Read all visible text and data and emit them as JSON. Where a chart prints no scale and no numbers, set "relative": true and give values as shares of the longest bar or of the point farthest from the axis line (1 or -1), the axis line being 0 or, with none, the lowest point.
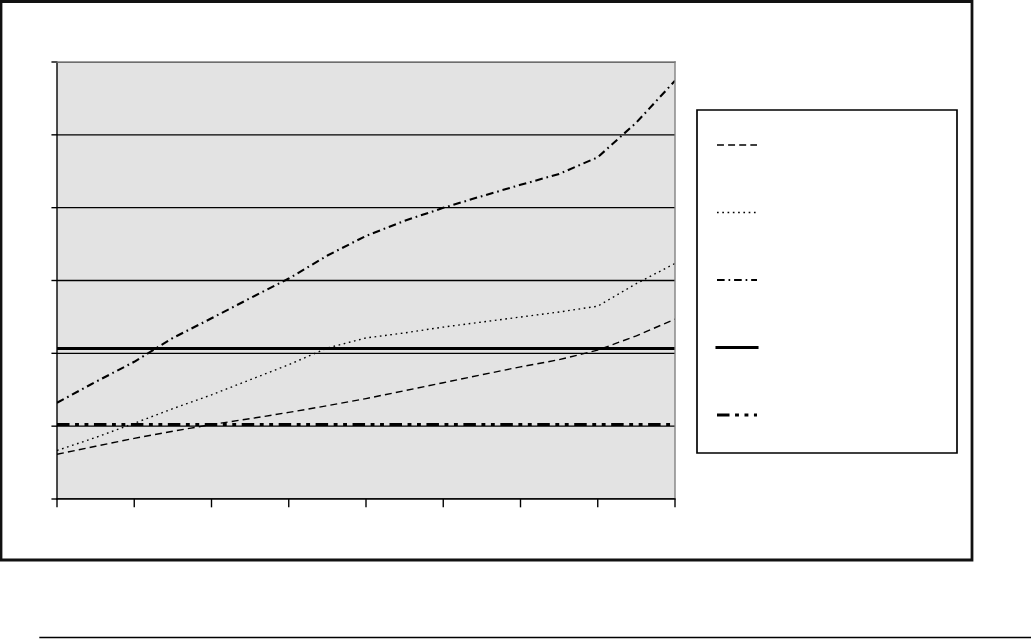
{
  "chart_data": {
    "type": "line",
    "relative": true,
    "tick_labels": false,
    "grid": "y",
    "categories": [
      null,
      null,
      null,
      null,
      null,
      null,
      null,
      null,
      null,
      null,
      null,
      null,
      null,
      null,
      null,
      null,
      null
    ],
    "series": [
      {
        "color": "#000000",
        "line_style": "dashed",
        "values": [
          0.107,
          0.126,
          0.145,
          0.162,
          0.178,
          0.192,
          0.207,
          0.223,
          0.24,
          0.259,
          0.278,
          0.297,
          0.316,
          0.333,
          0.356,
          0.39,
          0.43
        ]
      },
      {
        "color": "#000000",
        "line_style": "dotted",
        "values": [
          0.116,
          0.147,
          0.181,
          0.216,
          0.249,
          0.285,
          0.321,
          0.361,
          0.385,
          0.397,
          0.411,
          0.423,
          0.435,
          0.447,
          0.461,
          0.515,
          0.563
        ]
      },
      {
        "color": "#000000",
        "line_style": "dashdot",
        "values": [
          0.23,
          0.28,
          0.328,
          0.385,
          0.432,
          0.48,
          0.527,
          0.582,
          0.629,
          0.665,
          0.696,
          0.724,
          0.751,
          0.777,
          0.817,
          0.9,
          1.0
        ]
      },
      {
        "color": "#000000",
        "line_style": "solid",
        "values": [
          0.36,
          0.36,
          0.36,
          0.36,
          0.36,
          0.36,
          0.36,
          0.36,
          0.36,
          0.36,
          0.36,
          0.36,
          0.36,
          0.36,
          0.36,
          0.36,
          0.36
        ]
      },
      {
        "color": "#000000",
        "line_style": "dashdotdot",
        "values": [
          0.178,
          0.178,
          0.178,
          0.178,
          0.178,
          0.178,
          0.178,
          0.178,
          0.178,
          0.178,
          0.178,
          0.178,
          0.178,
          0.178,
          0.178,
          0.178,
          0.178
        ]
      }
    ]
  }
}
